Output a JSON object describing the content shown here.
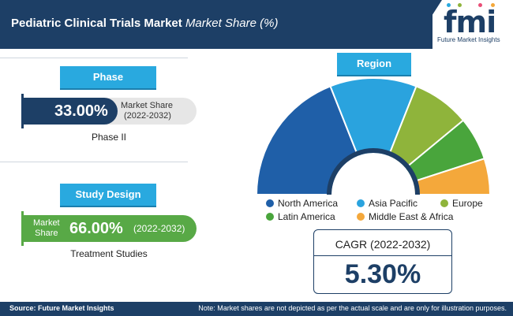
{
  "header": {
    "title_bold": "Pediatric Clinical Trials Market",
    "title_italic": "Market Share (%)"
  },
  "logo": {
    "text": "fmi",
    "subtitle": "Future Market Insights"
  },
  "phase": {
    "tag": "Phase",
    "value": "33.00%",
    "share_label_line1": "Market Share",
    "share_label_line2": "(2022-2032)",
    "segment": "Phase II"
  },
  "study_design": {
    "tag": "Study Design",
    "share_label_line1": "Market",
    "share_label_line2": "Share",
    "value": "66.00%",
    "period": "(2022-2032)",
    "segment": "Treatment Studies"
  },
  "region": {
    "tag": "Region"
  },
  "chart_data": {
    "type": "pie",
    "categories": [
      "North America",
      "Asia Pacific",
      "Europe",
      "Latin America",
      "Middle East & Africa"
    ],
    "values": [
      38,
      24,
      16,
      12,
      10
    ],
    "colors": [
      "#1f5fa8",
      "#2aa3de",
      "#8fb43b",
      "#49a53c",
      "#f4a83b"
    ],
    "title": ""
  },
  "cagr": {
    "label": "CAGR (2022-2032)",
    "value": "5.30%"
  },
  "footer": {
    "source": "Source: Future Market Insights",
    "note": "Note: Market shares are not depicted as per the actual scale and are only for illustration purposes."
  },
  "colors": {
    "navy": "#1d3f66",
    "blue_tag": "#29a9df",
    "green": "#58a946",
    "grey": "#e6e6e6"
  }
}
